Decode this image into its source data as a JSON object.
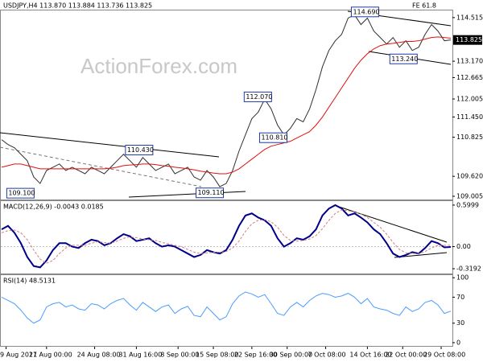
{
  "watermark": "ActionForex.com",
  "chart_data": [
    {
      "type": "line",
      "title": "USDJPY,H4 113.870 113.884 113.736 113.825",
      "note": "FE 61.8",
      "xlim": [
        0,
        70
      ],
      "ylim": [
        108.905,
        114.71
      ],
      "yticks": [
        114.515,
        {
          "value": 113.17,
          "label": "113.170"
        },
        112.665,
        112.005,
        {
          "value": 111.45,
          "label": "111.450"
        },
        110.825,
        {
          "value": 109.62,
          "label": "109.620"
        },
        109.005
      ],
      "price_marker": 113.825,
      "series": [
        {
          "color": "#303030",
          "values": [
            110.75,
            110.6,
            110.5,
            110.3,
            110.1,
            109.6,
            109.4,
            109.8,
            109.9,
            110.0,
            109.8,
            109.9,
            109.8,
            109.7,
            109.9,
            109.8,
            109.7,
            109.9,
            110.1,
            110.3,
            110.1,
            109.9,
            110.2,
            110.0,
            109.8,
            109.9,
            110.0,
            109.7,
            109.8,
            109.9,
            109.6,
            109.5,
            109.8,
            109.6,
            109.3,
            109.4,
            109.8,
            110.4,
            110.9,
            111.4,
            111.6,
            112.0,
            111.7,
            111.2,
            110.9,
            111.1,
            111.4,
            111.3,
            111.7,
            112.3,
            113.0,
            113.5,
            113.8,
            114.0,
            114.5,
            114.6,
            114.3,
            114.5,
            114.1,
            113.9,
            113.7,
            113.9,
            113.6,
            113.8,
            113.5,
            113.6,
            114.0,
            114.3,
            114.1,
            113.8,
            113.825
          ]
        },
        {
          "color": "#e01010",
          "values": [
            109.9,
            109.95,
            110.0,
            110.0,
            109.95,
            109.9,
            109.85,
            109.85,
            109.85,
            109.85,
            109.85,
            109.85,
            109.85,
            109.85,
            109.85,
            109.85,
            109.85,
            109.87,
            109.9,
            109.95,
            109.97,
            109.98,
            110.0,
            110.0,
            109.98,
            109.95,
            109.93,
            109.9,
            109.88,
            109.85,
            109.82,
            109.78,
            109.75,
            109.72,
            109.7,
            109.7,
            109.75,
            109.85,
            110.0,
            110.15,
            110.3,
            110.45,
            110.55,
            110.6,
            110.65,
            110.7,
            110.8,
            110.9,
            111.0,
            111.2,
            111.45,
            111.75,
            112.05,
            112.35,
            112.65,
            112.95,
            113.2,
            113.4,
            113.55,
            113.65,
            113.7,
            113.72,
            113.75,
            113.78,
            113.78,
            113.8,
            113.85,
            113.9,
            113.92,
            113.9,
            113.88
          ]
        }
      ],
      "annotations": [
        {
          "x": 54.5,
          "value": 114.69,
          "label": "114.690"
        },
        {
          "x": 60.5,
          "value": 113.24,
          "label": "113.240"
        },
        {
          "x": 37.8,
          "value": 112.07,
          "label": "112.070"
        },
        {
          "x": 40.2,
          "value": 110.81,
          "label": "110.810"
        },
        {
          "x": 19.3,
          "value": 110.43,
          "label": "110.430"
        },
        {
          "x": 0.8,
          "value": 109.1,
          "label": "109.100"
        },
        {
          "x": 30.3,
          "value": 109.11,
          "label": "109.110"
        }
      ]
    },
    {
      "type": "line",
      "title": "MACD(12,26,9) -0.0043 0.0185",
      "xlim": [
        0,
        70
      ],
      "ylim": [
        -0.3884,
        0.6576
      ],
      "yticks": [
        0.5999,
        {
          "value": 0,
          "label": "0.00"
        },
        -0.3192
      ],
      "series": [
        {
          "color": "#00008b",
          "values": [
            0.25,
            0.3,
            0.2,
            0.05,
            -0.15,
            -0.28,
            -0.3,
            -0.2,
            -0.05,
            0.05,
            0.05,
            0.0,
            -0.02,
            0.05,
            0.1,
            0.08,
            0.02,
            0.05,
            0.12,
            0.18,
            0.15,
            0.08,
            0.1,
            0.12,
            0.05,
            0.0,
            0.02,
            0.0,
            -0.05,
            -0.1,
            -0.15,
            -0.12,
            -0.05,
            -0.08,
            -0.1,
            -0.05,
            0.1,
            0.3,
            0.45,
            0.48,
            0.42,
            0.38,
            0.3,
            0.12,
            0.0,
            0.05,
            0.12,
            0.1,
            0.15,
            0.25,
            0.45,
            0.55,
            0.6,
            0.55,
            0.45,
            0.48,
            0.42,
            0.35,
            0.25,
            0.18,
            0.05,
            -0.1,
            -0.15,
            -0.12,
            -0.08,
            -0.1,
            -0.02,
            0.08,
            0.05,
            -0.01,
            -0.0043
          ]
        },
        {
          "color": "#d08080",
          "dashed": true,
          "values": [
            0.2,
            0.23,
            0.24,
            0.2,
            0.1,
            -0.05,
            -0.18,
            -0.24,
            -0.2,
            -0.1,
            -0.02,
            0.02,
            0.02,
            0.02,
            0.05,
            0.07,
            0.06,
            0.05,
            0.08,
            0.12,
            0.14,
            0.13,
            0.11,
            0.1,
            0.09,
            0.06,
            0.04,
            0.02,
            0.0,
            -0.04,
            -0.08,
            -0.1,
            -0.09,
            -0.08,
            -0.08,
            -0.07,
            -0.02,
            0.08,
            0.22,
            0.33,
            0.38,
            0.39,
            0.36,
            0.28,
            0.16,
            0.09,
            0.08,
            0.09,
            0.11,
            0.16,
            0.26,
            0.38,
            0.48,
            0.53,
            0.52,
            0.5,
            0.47,
            0.42,
            0.35,
            0.28,
            0.18,
            0.06,
            -0.04,
            -0.09,
            -0.1,
            -0.1,
            -0.07,
            -0.02,
            0.02,
            0.02,
            0.0185
          ]
        }
      ]
    },
    {
      "type": "line",
      "title": "RSI(14) 48.5131",
      "xlim": [
        0,
        70
      ],
      "ylim": [
        -5,
        104
      ],
      "yticks": [
        100,
        70,
        30,
        0
      ],
      "xticks": [
        {
          "value": 0.7,
          "label": "9 Aug 2021"
        },
        {
          "value": 7,
          "label": "17 Aug 00:00"
        },
        {
          "value": 14.5,
          "label": "24 Aug 08:00"
        },
        {
          "value": 21,
          "label": "31 Aug 16:00"
        },
        {
          "value": 27.5,
          "label": "8 Sep 00:00"
        },
        {
          "value": 33,
          "label": "15 Sep 08:00"
        },
        {
          "value": 39,
          "label": "22 Sep 16:00"
        },
        {
          "value": 44.5,
          "label": "30 Sep 00:00"
        },
        {
          "value": 50.5,
          "label": "7 Oct 08:00"
        },
        {
          "value": 57,
          "label": "14 Oct 16:00"
        },
        {
          "value": 62.5,
          "label": "22 Oct 00:00"
        },
        {
          "value": 68.5,
          "label": "29 Oct 08:00"
        }
      ],
      "series": [
        {
          "color": "#4a9cff",
          "values": [
            70,
            65,
            60,
            50,
            38,
            30,
            35,
            55,
            60,
            62,
            55,
            58,
            52,
            50,
            60,
            58,
            52,
            60,
            65,
            68,
            58,
            50,
            62,
            55,
            48,
            55,
            58,
            45,
            52,
            56,
            42,
            40,
            55,
            45,
            35,
            40,
            60,
            72,
            78,
            75,
            70,
            74,
            60,
            45,
            42,
            55,
            62,
            55,
            65,
            72,
            76,
            74,
            70,
            72,
            76,
            70,
            60,
            68,
            55,
            52,
            50,
            45,
            42,
            55,
            48,
            52,
            62,
            65,
            58,
            45,
            48.5131
          ]
        }
      ]
    }
  ]
}
